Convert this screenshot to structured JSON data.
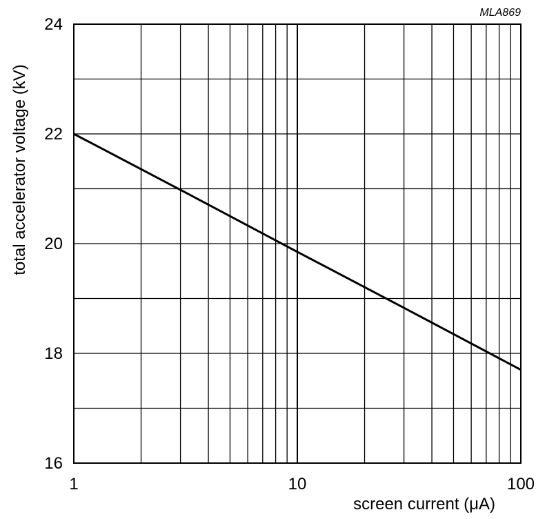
{
  "figure_code": "MLA869",
  "chart_data": {
    "type": "line",
    "xlabel": "screen current (μA)",
    "ylabel": "total accelerator voltage (kV)",
    "x_scale": "log",
    "y_scale": "linear",
    "xlim": [
      1,
      100
    ],
    "ylim": [
      16,
      24
    ],
    "x_ticks": [
      1,
      10,
      100
    ],
    "x_tick_labels": [
      "1",
      "10",
      "100"
    ],
    "y_ticks": [
      16,
      18,
      20,
      22,
      24
    ],
    "y_tick_labels": [
      "16",
      "18",
      "20",
      "22",
      "24"
    ],
    "grid": true,
    "series": [
      {
        "x": [
          1,
          3,
          10,
          30,
          100
        ],
        "y": [
          22,
          20.98,
          19.85,
          18.83,
          17.7
        ],
        "color": "#000000"
      }
    ]
  }
}
